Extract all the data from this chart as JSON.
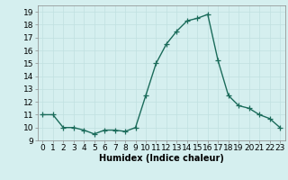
{
  "x": [
    0,
    1,
    2,
    3,
    4,
    5,
    6,
    7,
    8,
    9,
    10,
    11,
    12,
    13,
    14,
    15,
    16,
    17,
    18,
    19,
    20,
    21,
    22,
    23
  ],
  "y": [
    11,
    11,
    10,
    10,
    9.8,
    9.5,
    9.8,
    9.8,
    9.7,
    10,
    12.5,
    15,
    16.5,
    17.5,
    18.3,
    18.5,
    18.8,
    15.2,
    12.5,
    11.7,
    11.5,
    11,
    10.7,
    10
  ],
  "line_color": "#1a6b5a",
  "marker": "+",
  "marker_size": 4,
  "linewidth": 1.0,
  "xlabel": "Humidex (Indice chaleur)",
  "xlim": [
    -0.5,
    23.5
  ],
  "ylim": [
    9,
    19.5
  ],
  "yticks": [
    9,
    10,
    11,
    12,
    13,
    14,
    15,
    16,
    17,
    18,
    19
  ],
  "xticks": [
    0,
    1,
    2,
    3,
    4,
    5,
    6,
    7,
    8,
    9,
    10,
    11,
    12,
    13,
    14,
    15,
    16,
    17,
    18,
    19,
    20,
    21,
    22,
    23
  ],
  "xtick_labels": [
    "0",
    "1",
    "2",
    "3",
    "4",
    "5",
    "6",
    "7",
    "8",
    "9",
    "10",
    "11",
    "12",
    "13",
    "14",
    "15",
    "16",
    "17",
    "18",
    "19",
    "20",
    "21",
    "22",
    "23"
  ],
  "bg_color": "#d5efef",
  "grid_color": "#c0e0e0",
  "xlabel_fontsize": 7,
  "tick_fontsize": 6.5
}
